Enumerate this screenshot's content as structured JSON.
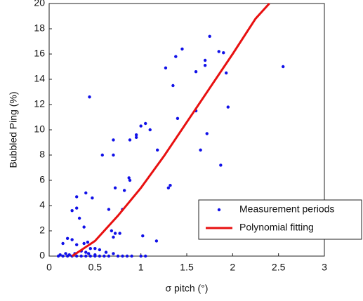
{
  "chart_data": {
    "type": "scatter",
    "xlabel": "σ pitch (°)",
    "ylabel": "Bubbled Ping (%)",
    "xlim": [
      0,
      3
    ],
    "ylim": [
      0,
      20
    ],
    "xticks": [
      0,
      0.5,
      1,
      1.5,
      2,
      2.5,
      3
    ],
    "yticks": [
      0,
      2,
      4,
      6,
      8,
      10,
      12,
      14,
      16,
      18,
      20
    ],
    "legend_position": "lower right",
    "series": [
      {
        "name": "Measurement periods",
        "color": "#1010e8",
        "mode": "markers",
        "x": [
          0.44,
          2.55,
          1.75,
          1.45,
          1.38,
          1.7,
          1.7,
          1.85,
          1.9,
          1.27,
          1.6,
          1.93,
          1.35,
          1.95,
          1.6,
          1.4,
          1.05,
          1.0,
          1.1,
          0.95,
          0.95,
          0.88,
          0.7,
          0.58,
          0.7,
          1.18,
          1.65,
          1.72,
          1.87,
          0.87,
          0.88,
          1.32,
          1.3,
          0.72,
          0.82,
          0.4,
          0.3,
          0.47,
          0.65,
          0.8,
          0.25,
          0.3,
          0.33,
          0.38,
          0.68,
          0.72,
          0.7,
          0.77,
          1.02,
          1.17,
          0.2,
          0.15,
          0.25,
          0.3,
          0.38,
          0.42,
          0.45,
          0.5,
          0.55,
          0.35,
          0.4,
          0.62,
          0.7,
          0.1,
          0.15,
          0.2,
          0.25,
          0.3,
          0.35,
          0.4,
          0.45,
          0.5,
          0.55,
          0.6,
          0.65,
          0.75,
          0.8,
          0.85,
          0.9,
          1.0,
          1.05,
          0.12,
          0.18,
          0.22,
          0.28,
          0.43,
          0.5
        ],
        "values": [
          12.6,
          15.0,
          17.4,
          16.4,
          15.8,
          15.5,
          15.1,
          16.2,
          16.1,
          14.9,
          14.6,
          14.5,
          13.5,
          11.8,
          11.5,
          10.9,
          10.5,
          10.3,
          10.0,
          9.6,
          9.4,
          9.2,
          9.2,
          8.0,
          8.0,
          8.4,
          8.4,
          9.7,
          7.2,
          6.2,
          6.0,
          5.6,
          5.4,
          5.4,
          5.2,
          5.0,
          4.7,
          4.6,
          3.7,
          3.7,
          3.6,
          3.8,
          3.0,
          2.3,
          2.0,
          1.8,
          1.5,
          1.8,
          1.6,
          1.2,
          1.4,
          1.0,
          1.3,
          0.9,
          1.0,
          1.1,
          0.6,
          0.6,
          0.5,
          0.4,
          0.3,
          0.3,
          0.2,
          0,
          0,
          0,
          0,
          0,
          0,
          0,
          0,
          0,
          0,
          0,
          0,
          0,
          0,
          0,
          0,
          0,
          0,
          0.1,
          0.2,
          0.1,
          0.2,
          0.2,
          0.1
        ]
      },
      {
        "name": "Polynomial fitting",
        "color": "#e81010",
        "mode": "line",
        "x": [
          0.25,
          0.5,
          0.75,
          1,
          1.25,
          1.5,
          1.75,
          2,
          2.25,
          2.4
        ],
        "values": [
          0,
          1.2,
          3.2,
          5.4,
          7.9,
          10.6,
          13.3,
          16.0,
          18.8,
          20
        ]
      }
    ]
  }
}
